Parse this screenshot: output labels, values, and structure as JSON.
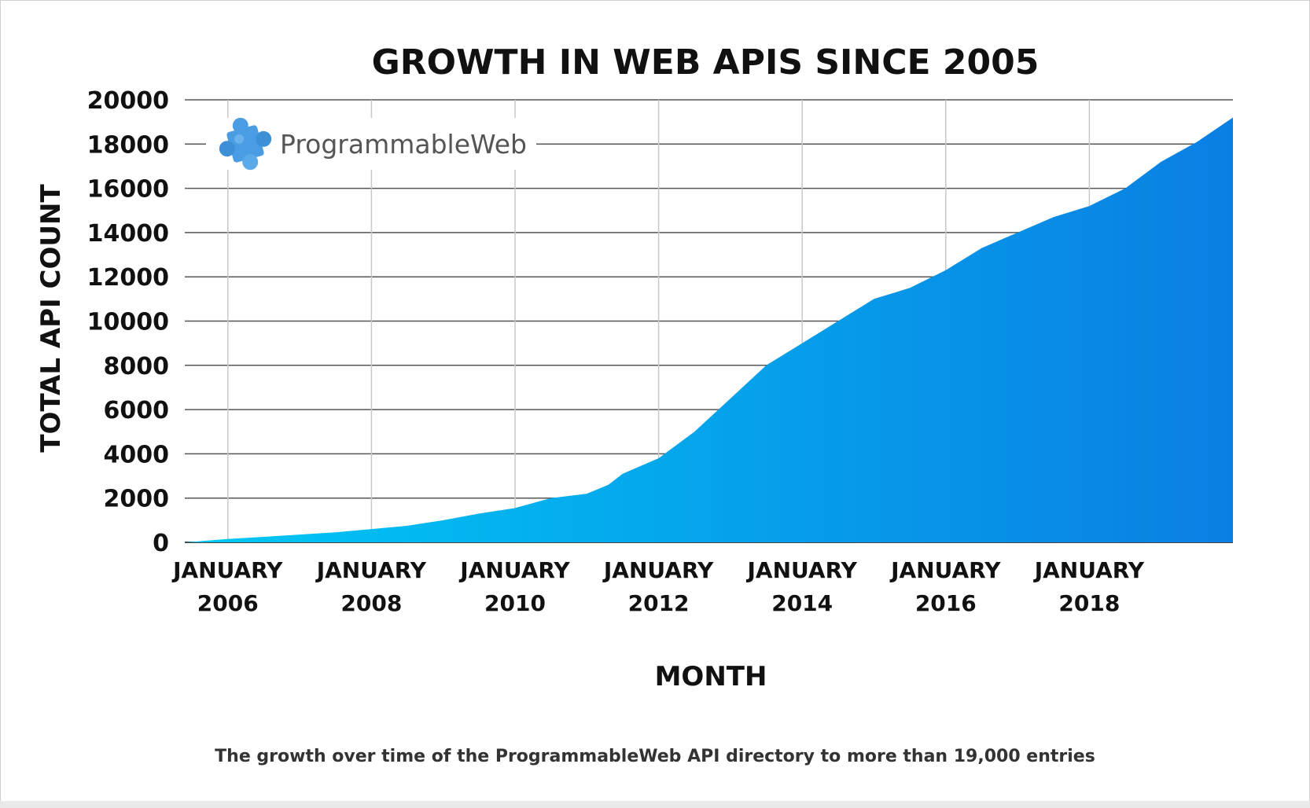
{
  "chart_data": {
    "type": "area",
    "title": "GROWTH IN WEB APIS SINCE 2005",
    "xlabel": "MONTH",
    "ylabel": "TOTAL API COUNT",
    "ylim": [
      0,
      20000
    ],
    "yticks": [
      "0",
      "2000",
      "4000",
      "6000",
      "8000",
      "10000",
      "12000",
      "14000",
      "16000",
      "18000",
      "20000"
    ],
    "xticks": [
      {
        "year": 2006,
        "line1": "JANUARY",
        "line2": "2006"
      },
      {
        "year": 2008,
        "line1": "JANUARY",
        "line2": "2008"
      },
      {
        "year": 2010,
        "line1": "JANUARY",
        "line2": "2010"
      },
      {
        "year": 2012,
        "line1": "JANUARY",
        "line2": "2012"
      },
      {
        "year": 2014,
        "line1": "JANUARY",
        "line2": "2014"
      },
      {
        "year": 2016,
        "line1": "JANUARY",
        "line2": "2016"
      },
      {
        "year": 2018,
        "line1": "JANUARY",
        "line2": "2018"
      }
    ],
    "grid": true,
    "series": [
      {
        "points": [
          [
            2005.4,
            0
          ],
          [
            2006.0,
            150
          ],
          [
            2006.5,
            250
          ],
          [
            2007.0,
            350
          ],
          [
            2007.5,
            450
          ],
          [
            2008.0,
            600
          ],
          [
            2008.5,
            750
          ],
          [
            2009.0,
            1000
          ],
          [
            2009.5,
            1300
          ],
          [
            2010.0,
            1550
          ],
          [
            2010.5,
            2000
          ],
          [
            2011.0,
            2200
          ],
          [
            2011.3,
            2600
          ],
          [
            2011.5,
            3100
          ],
          [
            2012.0,
            3800
          ],
          [
            2012.5,
            5000
          ],
          [
            2013.0,
            6500
          ],
          [
            2013.5,
            8000
          ],
          [
            2014.0,
            9000
          ],
          [
            2014.5,
            10000
          ],
          [
            2015.0,
            11000
          ],
          [
            2015.5,
            11500
          ],
          [
            2016.0,
            12300
          ],
          [
            2016.5,
            13300
          ],
          [
            2017.0,
            14000
          ],
          [
            2017.5,
            14700
          ],
          [
            2018.0,
            15200
          ],
          [
            2018.5,
            16000
          ],
          [
            2019.0,
            17200
          ],
          [
            2019.5,
            18100
          ],
          [
            2020.0,
            19200
          ]
        ],
        "color_start": "#00c8f4",
        "color_end": "#0a7fe3"
      }
    ]
  },
  "logo": {
    "text": "ProgrammableWeb",
    "icon": "puzzle-piece-icon",
    "color": "#3a8fd8"
  },
  "caption": "The growth over time of the ProgrammableWeb API directory to more than 19,000 entries"
}
